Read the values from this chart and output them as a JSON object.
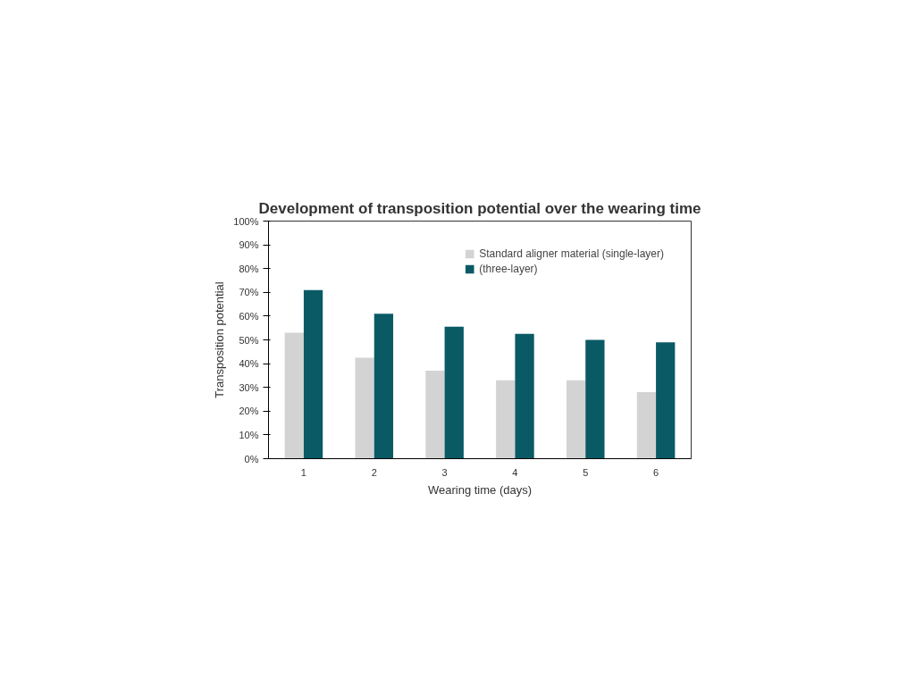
{
  "chart_data": {
    "type": "bar",
    "title": "Development of transposition potential over the wearing time",
    "xlabel": "Wearing time (days)",
    "ylabel": "Transposition potential",
    "categories": [
      "1",
      "2",
      "3",
      "4",
      "5",
      "6"
    ],
    "series": [
      {
        "name": "Standard aligner material (single-layer)",
        "color": "#d3d3d3",
        "values": [
          53,
          42.5,
          37,
          33,
          33,
          28
        ]
      },
      {
        "name": "(three-layer)",
        "color": "#0a5a66",
        "values": [
          71,
          61,
          55.5,
          52.5,
          50,
          49
        ]
      }
    ],
    "ylim": [
      0,
      100
    ],
    "yticks": [
      {
        "value": 0,
        "label": "0%"
      },
      {
        "value": 10,
        "label": "10%"
      },
      {
        "value": 20,
        "label": "20%"
      },
      {
        "value": 30,
        "label": "30%"
      },
      {
        "value": 40,
        "label": "40%"
      },
      {
        "value": 50,
        "label": "50%"
      },
      {
        "value": 60,
        "label": "60%"
      },
      {
        "value": 70,
        "label": "70%"
      },
      {
        "value": 80,
        "label": "80%"
      },
      {
        "value": 90,
        "label": "90%"
      },
      {
        "value": 100,
        "label": "100%"
      }
    ],
    "grid": false,
    "legend": "top right"
  }
}
